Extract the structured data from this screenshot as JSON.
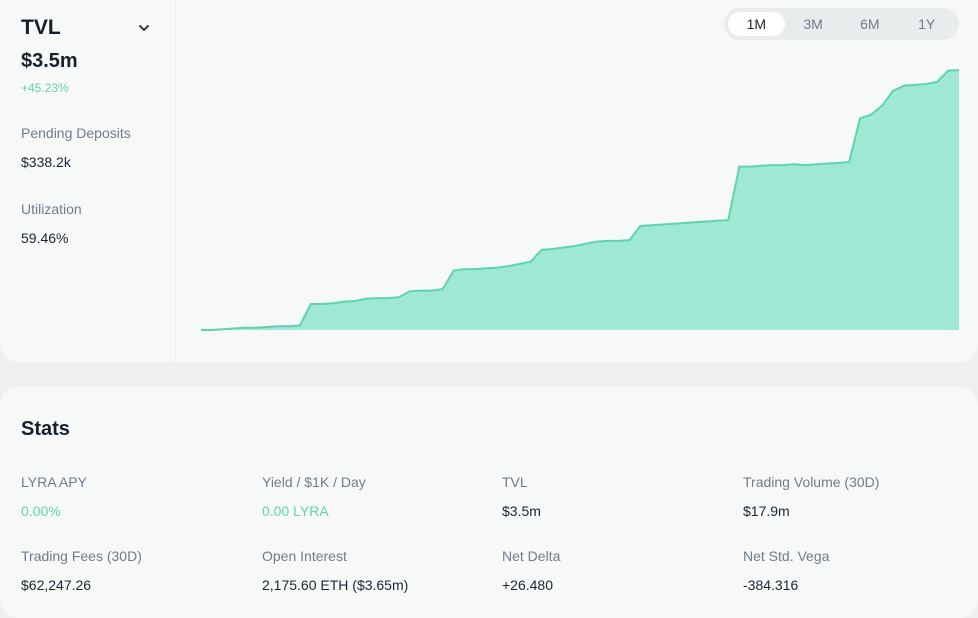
{
  "header": {
    "title": "TVL",
    "value": "$3.5m",
    "change": "+45.23%",
    "pending_deposits_label": "Pending Deposits",
    "pending_deposits_value": "$338.2k",
    "utilization_label": "Utilization",
    "utilization_value": "59.46%"
  },
  "range_tabs": [
    {
      "label": "1M",
      "active": true
    },
    {
      "label": "3M",
      "active": false
    },
    {
      "label": "6M",
      "active": false
    },
    {
      "label": "1Y",
      "active": false
    }
  ],
  "colors": {
    "accent": "#5fd3b0",
    "area_fill": "#9ee8d4",
    "area_line": "#5fd3b0"
  },
  "chart_data": {
    "type": "area",
    "title": "",
    "xlabel": "",
    "ylabel": "",
    "grid": false,
    "legend": "none",
    "ylim": [
      0,
      3.5
    ],
    "x": [
      0,
      1,
      2,
      3,
      4,
      5,
      6,
      7,
      8,
      9,
      10,
      11,
      12,
      13,
      14,
      15,
      16,
      17,
      18,
      19,
      20,
      21,
      22,
      23,
      24,
      25,
      26,
      27,
      28,
      29,
      30,
      31,
      32,
      33,
      34,
      35,
      36,
      37,
      38,
      39,
      40,
      41,
      42,
      43,
      44,
      45,
      46,
      47,
      48,
      49,
      50,
      51,
      52,
      53,
      54,
      55,
      56,
      57,
      58,
      59,
      60,
      61,
      62,
      63,
      64,
      65,
      66,
      67,
      68,
      69
    ],
    "series": [
      {
        "values": [
          0.0,
          0.0,
          0.01,
          0.02,
          0.03,
          0.03,
          0.04,
          0.05,
          0.05,
          0.06,
          0.35,
          0.35,
          0.36,
          0.38,
          0.39,
          0.42,
          0.43,
          0.43,
          0.44,
          0.52,
          0.53,
          0.53,
          0.55,
          0.8,
          0.82,
          0.82,
          0.83,
          0.84,
          0.86,
          0.89,
          0.92,
          1.08,
          1.09,
          1.11,
          1.13,
          1.16,
          1.19,
          1.2,
          1.2,
          1.21,
          1.4,
          1.41,
          1.42,
          1.43,
          1.44,
          1.45,
          1.46,
          1.47,
          1.48,
          2.2,
          2.2,
          2.21,
          2.22,
          2.22,
          2.23,
          2.22,
          2.23,
          2.24,
          2.25,
          2.26,
          2.85,
          2.9,
          3.02,
          3.22,
          3.29,
          3.3,
          3.31,
          3.34,
          3.49,
          3.5
        ]
      }
    ]
  },
  "stats": {
    "title": "Stats",
    "items": [
      {
        "label": "LYRA APY",
        "value": "0.00%",
        "accent": true
      },
      {
        "label": "Yield / $1K / Day",
        "value": "0.00 LYRA",
        "accent": true
      },
      {
        "label": "TVL",
        "value": "$3.5m",
        "accent": false
      },
      {
        "label": "Trading Volume (30D)",
        "value": "$17.9m",
        "accent": false
      },
      {
        "label": "Trading Fees (30D)",
        "value": "$62,247.26",
        "accent": false
      },
      {
        "label": "Open Interest",
        "value": "2,175.60 ETH ($3.65m)",
        "accent": false
      },
      {
        "label": "Net Delta",
        "value": "+26.480",
        "accent": false
      },
      {
        "label": "Net Std. Vega",
        "value": "-384.316",
        "accent": false
      }
    ]
  }
}
